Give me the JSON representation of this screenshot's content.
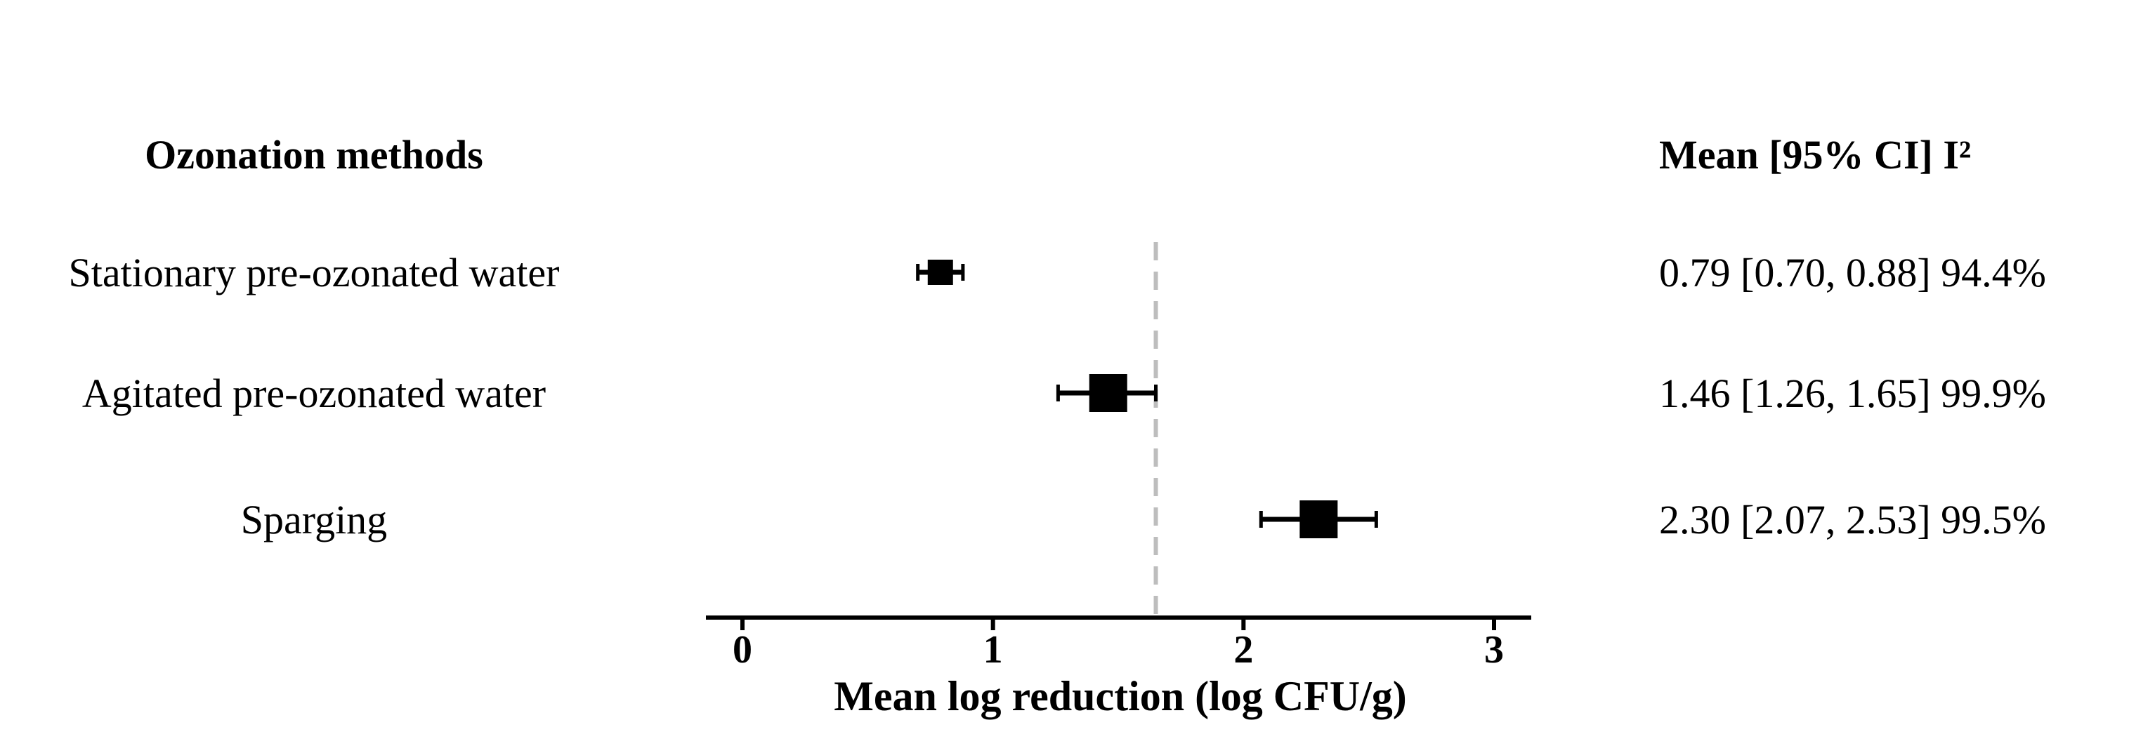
{
  "chart_data": {
    "type": "forest",
    "headers": {
      "left": "Ozonation methods",
      "right": "Mean [95% CI]  I²"
    },
    "rows": [
      {
        "label": "Stationary pre-ozonated water",
        "mean": 0.79,
        "ci_low": 0.7,
        "ci_high": 0.88,
        "weight": 0.4,
        "stat": "0.79 [0.70, 0.88] 94.4%"
      },
      {
        "label": "Agitated pre-ozonated water",
        "mean": 1.46,
        "ci_low": 1.26,
        "ci_high": 1.65,
        "weight": 1.0,
        "stat": "1.46 [1.26, 1.65] 99.9%"
      },
      {
        "label": "Sparging",
        "mean": 2.3,
        "ci_low": 2.07,
        "ci_high": 2.53,
        "weight": 1.0,
        "stat": "2.30 [2.07, 2.53] 99.5%"
      }
    ],
    "reference_line": 1.65,
    "xlim": [
      -0.15,
      3.15
    ],
    "xticks": [
      0,
      1,
      2,
      3
    ],
    "xlabel": "Mean log reduction (log CFU/g)",
    "colors": {
      "marker": "#000000",
      "reference": "#bdbdbd",
      "axis": "#000000"
    }
  }
}
